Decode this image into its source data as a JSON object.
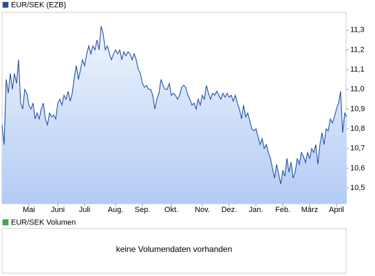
{
  "chart_data": {
    "type": "line",
    "series": [
      {
        "name": "EUR/SEK (EZB)",
        "color": "#1f4fa8",
        "values": [
          10.82,
          10.72,
          11.05,
          10.98,
          11.08,
          11.0,
          11.08,
          11.03,
          11.15,
          10.93,
          10.9,
          11.0,
          10.98,
          10.92,
          10.9,
          10.93,
          10.85,
          10.88,
          10.85,
          10.9,
          10.93,
          10.85,
          10.82,
          10.88,
          10.86,
          10.87,
          10.85,
          10.93,
          10.95,
          10.92,
          10.97,
          10.95,
          10.99,
          10.94,
          10.98,
          11.06,
          11.12,
          11.05,
          11.1,
          11.15,
          11.12,
          11.18,
          11.22,
          11.18,
          11.22,
          11.2,
          11.25,
          11.2,
          11.32,
          11.28,
          11.2,
          11.22,
          11.18,
          11.15,
          11.18,
          11.2,
          11.18,
          11.2,
          11.15,
          11.19,
          11.17,
          11.19,
          11.18,
          11.15,
          11.18,
          11.15,
          11.1,
          11.08,
          11.03,
          11.01,
          11.02,
          11.0,
          11.0,
          10.97,
          10.9,
          10.95,
          10.98,
          11.05,
          11.02,
          11.0,
          11.0,
          11.03,
          10.97,
          10.98,
          10.97,
          10.95,
          10.97,
          11.01,
          11.02,
          11.01,
          10.97,
          10.95,
          10.92,
          10.93,
          10.9,
          10.95,
          10.92,
          10.97,
          10.95,
          11.02,
          10.98,
          10.95,
          10.98,
          10.97,
          10.99,
          10.97,
          10.95,
          10.98,
          10.96,
          10.98,
          10.96,
          10.97,
          10.94,
          10.97,
          10.93,
          10.9,
          10.85,
          10.92,
          10.86,
          10.88,
          10.84,
          10.8,
          10.79,
          10.8,
          10.76,
          10.72,
          10.75,
          10.7,
          10.72,
          10.68,
          10.65,
          10.6,
          10.55,
          10.62,
          10.57,
          10.52,
          10.59,
          10.56,
          10.65,
          10.58,
          10.63,
          10.55,
          10.58,
          10.65,
          10.62,
          10.68,
          10.66,
          10.63,
          10.68,
          10.65,
          10.7,
          10.68,
          10.72,
          10.62,
          10.72,
          10.78,
          10.72,
          10.8,
          10.79,
          10.85,
          10.83,
          10.86,
          10.9,
          10.93,
          10.99,
          10.78,
          10.88,
          10.86
        ]
      }
    ],
    "xlim": [
      0,
      166
    ],
    "xticks": [
      {
        "value": 13,
        "label": "Mai"
      },
      {
        "value": 27,
        "label": "Juni"
      },
      {
        "value": 40,
        "label": "Juli"
      },
      {
        "value": 55,
        "label": "Aug."
      },
      {
        "value": 68,
        "label": "Sep."
      },
      {
        "value": 82,
        "label": "Okt."
      },
      {
        "value": 97,
        "label": "Nov."
      },
      {
        "value": 110,
        "label": "Dez."
      },
      {
        "value": 123,
        "label": "Jan."
      },
      {
        "value": 136,
        "label": "Feb."
      },
      {
        "value": 149,
        "label": "März"
      },
      {
        "value": 162,
        "label": "April"
      }
    ],
    "ylim": [
      10.42,
      11.39
    ],
    "yticks": [
      {
        "value": 10.5,
        "label": "10,5"
      },
      {
        "value": 10.6,
        "label": "10,6"
      },
      {
        "value": 10.7,
        "label": "10,7"
      },
      {
        "value": 10.8,
        "label": "10,8"
      },
      {
        "value": 10.9,
        "label": "10,9"
      },
      {
        "value": 11.0,
        "label": "11,0"
      },
      {
        "value": 11.1,
        "label": "11,1"
      },
      {
        "value": 11.2,
        "label": "11,2"
      },
      {
        "value": 11.3,
        "label": "11,3"
      }
    ]
  },
  "volume_panel": {
    "legend": "EUR/SEK Volumen",
    "legend_color": "#3cb043",
    "message": "keine Volumendaten vorhanden"
  }
}
